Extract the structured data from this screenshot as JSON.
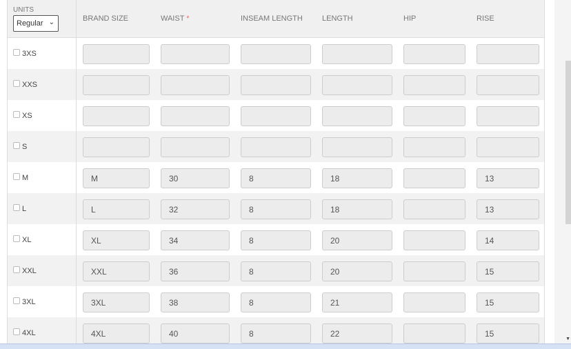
{
  "units": {
    "label": "UNITS",
    "selected": "Regular"
  },
  "columns": [
    "BRAND SIZE",
    "WAIST",
    "INSEAM LENGTH",
    "LENGTH",
    "HIP",
    "RISE"
  ],
  "required_mark": "*",
  "rows": [
    {
      "size": "3XS",
      "values": [
        "",
        "",
        "",
        "",
        "",
        ""
      ]
    },
    {
      "size": "XXS",
      "values": [
        "",
        "",
        "",
        "",
        "",
        ""
      ]
    },
    {
      "size": "XS",
      "values": [
        "",
        "",
        "",
        "",
        "",
        ""
      ]
    },
    {
      "size": "S",
      "values": [
        "",
        "",
        "",
        "",
        "",
        ""
      ]
    },
    {
      "size": "M",
      "values": [
        "M",
        "30",
        "8",
        "18",
        "",
        "13"
      ]
    },
    {
      "size": "L",
      "values": [
        "L",
        "32",
        "8",
        "18",
        "",
        "13"
      ]
    },
    {
      "size": "XL",
      "values": [
        "XL",
        "34",
        "8",
        "20",
        "",
        "14"
      ]
    },
    {
      "size": "XXL",
      "values": [
        "XXL",
        "36",
        "8",
        "20",
        "",
        "15"
      ]
    },
    {
      "size": "3XL",
      "values": [
        "3XL",
        "38",
        "8",
        "21",
        "",
        "15"
      ]
    },
    {
      "size": "4XL",
      "values": [
        "4XL",
        "40",
        "8",
        "22",
        "",
        "15"
      ]
    }
  ]
}
